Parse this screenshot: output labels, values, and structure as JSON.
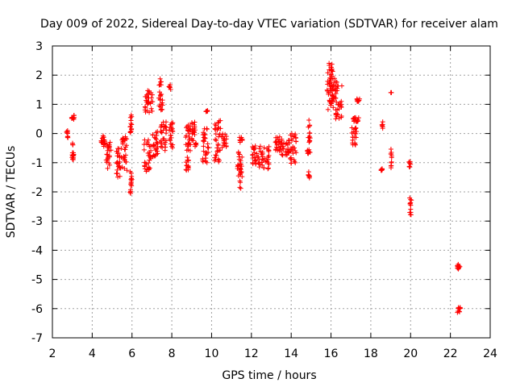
{
  "chart_data": {
    "type": "scatter",
    "title": "Day 009 of 2022, Sidereal Day-to-day VTEC variation (SDTVAR) for receiver alam",
    "xlabel": "GPS time / hours",
    "ylabel": "SDTVAR / TECUs",
    "xlim": [
      2,
      24
    ],
    "ylim": [
      -7,
      3
    ],
    "xticks": [
      2,
      4,
      6,
      8,
      10,
      12,
      14,
      16,
      18,
      20,
      22,
      24
    ],
    "yticks": [
      -7,
      -6,
      -5,
      -4,
      -3,
      -2,
      -1,
      0,
      1,
      2,
      3
    ],
    "grid": true,
    "marker": "+",
    "marker_color": "#ff0000",
    "clusters": [
      {
        "x": [
          2.7,
          2.8
        ],
        "y": [
          -0.2,
          0.1
        ]
      },
      {
        "x": [
          2.95,
          3.1
        ],
        "y": [
          0.45,
          0.65
        ]
      },
      {
        "x": [
          2.95,
          3.1
        ],
        "y": [
          -0.9,
          -0.3
        ]
      },
      {
        "x": [
          4.45,
          4.65
        ],
        "y": [
          -0.6,
          -0.05
        ]
      },
      {
        "x": [
          4.7,
          4.95
        ],
        "y": [
          -1.2,
          -0.3
        ]
      },
      {
        "x": [
          5.2,
          5.45
        ],
        "y": [
          -1.5,
          -0.5
        ]
      },
      {
        "x": [
          5.45,
          5.75
        ],
        "y": [
          -1.3,
          -0.1
        ]
      },
      {
        "x": [
          5.9,
          6.0
        ],
        "y": [
          0.0,
          0.7
        ]
      },
      {
        "x": [
          5.9,
          6.0
        ],
        "y": [
          -2.15,
          -1.3
        ]
      },
      {
        "x": [
          6.6,
          6.95
        ],
        "y": [
          -1.3,
          -0.2
        ]
      },
      {
        "x": [
          6.65,
          7.05
        ],
        "y": [
          0.7,
          1.5
        ]
      },
      {
        "x": [
          7.0,
          7.3
        ],
        "y": [
          -0.8,
          0.1
        ]
      },
      {
        "x": [
          7.35,
          7.55
        ],
        "y": [
          0.8,
          1.9
        ]
      },
      {
        "x": [
          7.4,
          7.75
        ],
        "y": [
          -0.6,
          0.4
        ]
      },
      {
        "x": [
          7.85,
          8.05
        ],
        "y": [
          -0.5,
          0.4
        ]
      },
      {
        "x": [
          7.85,
          7.95
        ],
        "y": [
          1.5,
          1.7
        ]
      },
      {
        "x": [
          8.7,
          8.85
        ],
        "y": [
          -1.3,
          -0.8
        ]
      },
      {
        "x": [
          8.7,
          8.95
        ],
        "y": [
          -0.6,
          0.4
        ]
      },
      {
        "x": [
          9.0,
          9.25
        ],
        "y": [
          -0.5,
          0.45
        ]
      },
      {
        "x": [
          9.55,
          9.85
        ],
        "y": [
          -1.0,
          0.3
        ]
      },
      {
        "x": [
          9.7,
          9.8
        ],
        "y": [
          0.75,
          0.8
        ]
      },
      {
        "x": [
          10.15,
          10.45
        ],
        "y": [
          -1.0,
          0.5
        ]
      },
      {
        "x": [
          10.5,
          10.75
        ],
        "y": [
          -0.5,
          0.0
        ]
      },
      {
        "x": [
          11.3,
          11.55
        ],
        "y": [
          -1.95,
          -0.6
        ]
      },
      {
        "x": [
          11.4,
          11.55
        ],
        "y": [
          -0.3,
          -0.1
        ]
      },
      {
        "x": [
          12.05,
          12.3
        ],
        "y": [
          -1.1,
          -0.4
        ]
      },
      {
        "x": [
          12.3,
          12.9
        ],
        "y": [
          -1.25,
          -0.4
        ]
      },
      {
        "x": [
          13.2,
          13.55
        ],
        "y": [
          -0.6,
          -0.1
        ]
      },
      {
        "x": [
          13.5,
          13.95
        ],
        "y": [
          -0.75,
          -0.2
        ]
      },
      {
        "x": [
          13.95,
          14.25
        ],
        "y": [
          -1.05,
          0.0
        ]
      },
      {
        "x": [
          14.85,
          14.95
        ],
        "y": [
          -1.55,
          -1.3
        ]
      },
      {
        "x": [
          14.8,
          14.95
        ],
        "y": [
          -0.7,
          -0.55
        ]
      },
      {
        "x": [
          14.85,
          14.95
        ],
        "y": [
          -0.3,
          0.55
        ]
      },
      {
        "x": [
          15.8,
          16.1
        ],
        "y": [
          1.0,
          2.55
        ]
      },
      {
        "x": [
          15.85,
          16.25
        ],
        "y": [
          0.8,
          2.0
        ]
      },
      {
        "x": [
          16.2,
          16.55
        ],
        "y": [
          0.5,
          1.8
        ]
      },
      {
        "x": [
          17.0,
          17.3
        ],
        "y": [
          -0.4,
          0.2
        ]
      },
      {
        "x": [
          17.1,
          17.4
        ],
        "y": [
          0.4,
          0.55
        ]
      },
      {
        "x": [
          17.3,
          17.45
        ],
        "y": [
          1.1,
          1.2
        ]
      },
      {
        "x": [
          18.5,
          18.6
        ],
        "y": [
          -1.3,
          -1.2
        ]
      },
      {
        "x": [
          18.55,
          18.6
        ],
        "y": [
          0.15,
          0.45
        ]
      },
      {
        "x": [
          19.0,
          19.05
        ],
        "y": [
          -1.2,
          -0.5
        ]
      },
      {
        "x": [
          19.0,
          19.05
        ],
        "y": [
          1.4,
          1.4
        ]
      },
      {
        "x": [
          19.9,
          20.0
        ],
        "y": [
          -1.15,
          -0.95
        ]
      },
      {
        "x": [
          19.95,
          20.05
        ],
        "y": [
          -2.8,
          -2.2
        ]
      },
      {
        "x": [
          22.35,
          22.5
        ],
        "y": [
          -4.7,
          -4.4
        ]
      },
      {
        "x": [
          22.35,
          22.5
        ],
        "y": [
          -6.15,
          -5.95
        ]
      }
    ]
  }
}
